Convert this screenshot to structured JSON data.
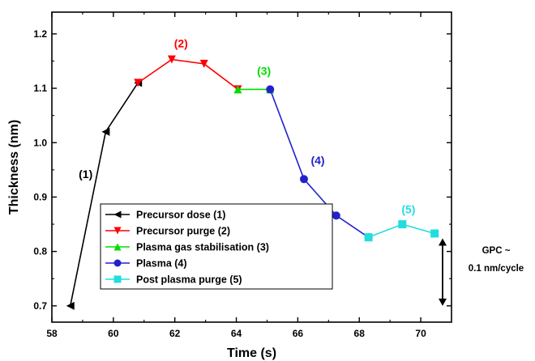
{
  "chart_data": {
    "type": "line",
    "xlabel": "Time (s)",
    "ylabel": "Thickness (nm)",
    "xlim": [
      58,
      71
    ],
    "ylim": [
      0.67,
      1.24
    ],
    "x_ticks": [
      58,
      60,
      62,
      64,
      66,
      68,
      70
    ],
    "y_ticks": [
      0.7,
      0.8,
      0.9,
      1.0,
      1.1,
      1.2
    ],
    "x_tick_labels": [
      "58",
      "60",
      "62",
      "64",
      "66",
      "68",
      "70"
    ],
    "y_tick_labels": [
      "0.7",
      "0.8",
      "0.9",
      "1.0",
      "1.1",
      "1.2"
    ],
    "legend_position": "bottom-left",
    "series": [
      {
        "name": "Precursor dose (1)",
        "color": "#000000",
        "marker": "triangle-left",
        "points": [
          [
            58.6,
            0.7
          ],
          [
            59.75,
            1.02
          ],
          [
            60.8,
            1.11
          ]
        ]
      },
      {
        "name": "Precursor purge (2)",
        "color": "#ff0000",
        "marker": "triangle-down",
        "points": [
          [
            60.8,
            1.11
          ],
          [
            61.9,
            1.153
          ],
          [
            62.95,
            1.145
          ],
          [
            64.05,
            1.098
          ]
        ]
      },
      {
        "name": "Plasma gas stabilisation (3)",
        "color": "#00dd00",
        "marker": "triangle-up",
        "points": [
          [
            64.05,
            1.098
          ],
          [
            65.1,
            1.098
          ]
        ]
      },
      {
        "name": "Plasma (4)",
        "color": "#2222cc",
        "marker": "circle",
        "points": [
          [
            65.1,
            1.098
          ],
          [
            66.2,
            0.933
          ],
          [
            67.25,
            0.866
          ],
          [
            68.3,
            0.826
          ]
        ]
      },
      {
        "name": "Post plasma purge (5)",
        "color": "#22dddd",
        "marker": "square",
        "points": [
          [
            68.3,
            0.826
          ],
          [
            69.4,
            0.85
          ],
          [
            70.45,
            0.833
          ]
        ]
      }
    ],
    "phase_labels": [
      {
        "text": "(1)",
        "x": 59.1,
        "y": 0.935,
        "color": "#000000"
      },
      {
        "text": "(2)",
        "x": 62.2,
        "y": 1.175,
        "color": "#ff0000"
      },
      {
        "text": "(3)",
        "x": 64.9,
        "y": 1.125,
        "color": "#00dd00"
      },
      {
        "text": "(4)",
        "x": 66.65,
        "y": 0.96,
        "color": "#2222cc"
      },
      {
        "text": "(5)",
        "x": 69.6,
        "y": 0.87,
        "color": "#22dddd"
      }
    ],
    "annotation": {
      "line1": "GPC ~",
      "line2": "0.1 nm/cycle",
      "arrow_from": 0.824,
      "arrow_to": 0.7
    }
  }
}
